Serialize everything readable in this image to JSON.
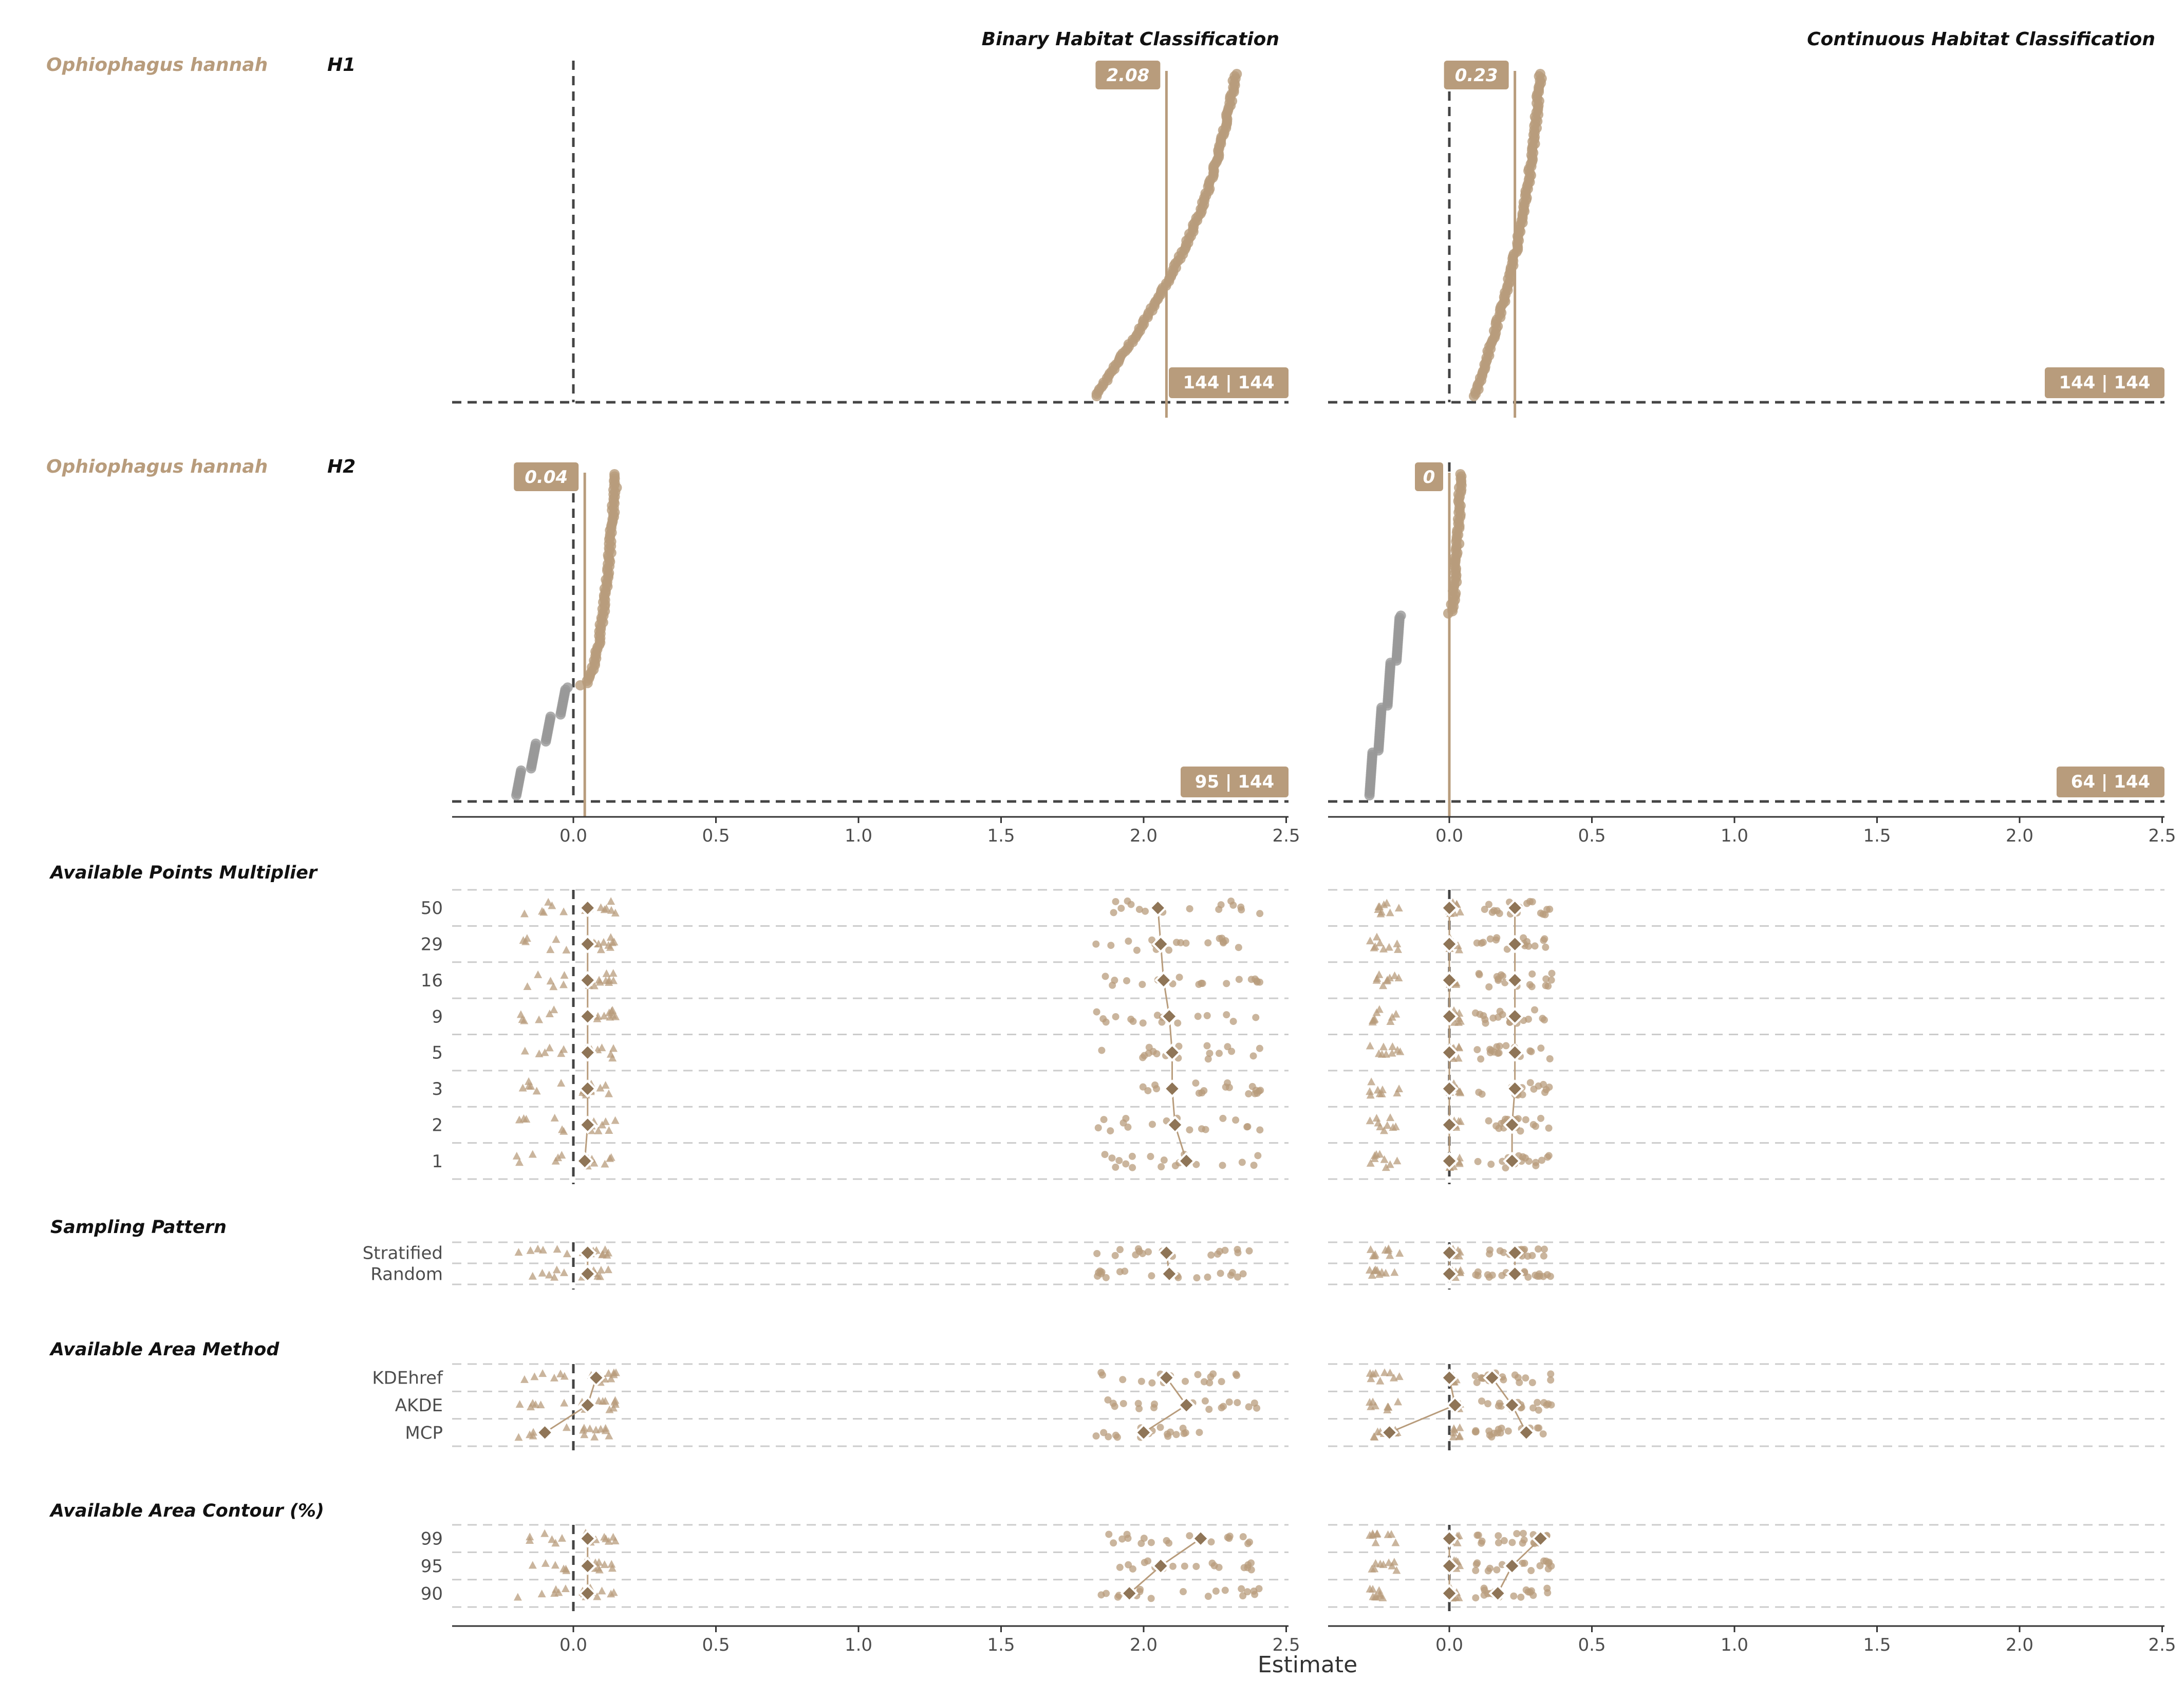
{
  "chart_data": {
    "type": "scatter",
    "xlabel": "Estimate",
    "xlim": [
      -0.42,
      2.52
    ],
    "xticks": [
      "0.0",
      "0.5",
      "1.0",
      "1.5",
      "2.0",
      "2.5"
    ],
    "colors": {
      "accent": "#b89c7c",
      "negative": "#999999",
      "zero_line": "#444444",
      "grid": "#cccccc",
      "text": "#333333"
    },
    "columns": [
      "Binary Habitat Classification",
      "Continuous Habitat Classification"
    ],
    "top_panels": [
      {
        "species": "Ophiophagus hannah",
        "hypothesis": "H1",
        "binary": {
          "median": 2.08,
          "median_label": "2.08",
          "count_label": "144 | 144",
          "pos_range": [
            1.83,
            2.41
          ],
          "neg_range": null,
          "neg_fraction": 0
        },
        "continuous": {
          "median": 0.23,
          "median_label": "0.23",
          "count_label": "144 | 144",
          "pos_range": [
            0.09,
            0.36
          ],
          "neg_range": null,
          "neg_fraction": 0
        }
      },
      {
        "species": "Ophiophagus hannah",
        "hypothesis": "H2",
        "binary": {
          "median": 0.04,
          "median_label": "0.04",
          "count_label": "95 | 144",
          "pos_range": [
            0.03,
            0.15
          ],
          "neg_range": [
            -0.2,
            -0.02
          ],
          "neg_fraction": 0.34
        },
        "continuous": {
          "median": 0.0,
          "median_label": "0",
          "count_label": "64 | 144",
          "pos_range": [
            0.0,
            0.04
          ],
          "neg_range": [
            -0.28,
            -0.17
          ],
          "neg_fraction": 0.56
        }
      }
    ],
    "bottom_groups": [
      {
        "title": "Available Points Multiplier",
        "levels": [
          "50",
          "29",
          "16",
          "9",
          "5",
          "3",
          "2",
          "1"
        ],
        "binary_h1_medians": [
          2.05,
          2.06,
          2.07,
          2.09,
          2.1,
          2.1,
          2.11,
          2.15
        ],
        "binary_h2_medians": [
          0.05,
          0.05,
          0.05,
          0.05,
          0.05,
          0.05,
          0.05,
          0.04
        ],
        "continuous_h1_medians": [
          0.23,
          0.23,
          0.23,
          0.23,
          0.23,
          0.23,
          0.22,
          0.22
        ],
        "continuous_h2_medians": [
          0.0,
          0.0,
          0.0,
          0.0,
          0.0,
          0.0,
          0.0,
          0.0
        ]
      },
      {
        "title": "Sampling Pattern",
        "levels": [
          "Stratified",
          "Random"
        ],
        "binary_h1_medians": [
          2.08,
          2.09
        ],
        "binary_h2_medians": [
          0.05,
          0.05
        ],
        "continuous_h1_medians": [
          0.23,
          0.23
        ],
        "continuous_h2_medians": [
          0.0,
          0.0
        ]
      },
      {
        "title": "Available Area Method",
        "levels": [
          "KDEhref",
          "AKDE",
          "MCP"
        ],
        "binary_h1_medians": [
          2.08,
          2.15,
          2.0
        ],
        "binary_h2_medians": [
          0.08,
          0.05,
          -0.1
        ],
        "continuous_h1_medians": [
          0.15,
          0.22,
          0.27
        ],
        "continuous_h2_medians": [
          0.0,
          0.02,
          -0.21
        ]
      },
      {
        "title": "Available Area Contour (%)",
        "levels": [
          "99",
          "95",
          "90"
        ],
        "binary_h1_medians": [
          2.2,
          2.06,
          1.95
        ],
        "binary_h2_medians": [
          0.05,
          0.05,
          0.05
        ],
        "continuous_h1_medians": [
          0.32,
          0.22,
          0.17
        ],
        "continuous_h2_medians": [
          0.0,
          0.0,
          0.0
        ]
      }
    ]
  }
}
